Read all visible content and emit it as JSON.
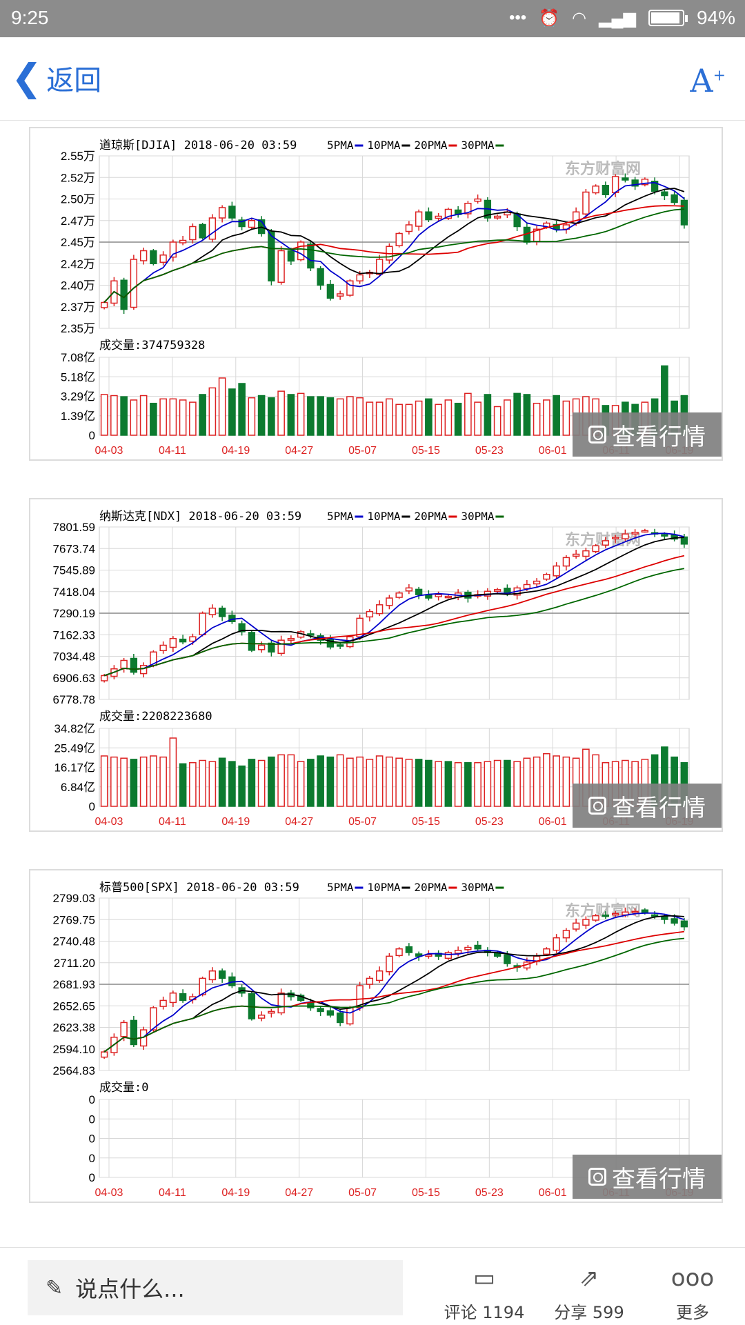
{
  "status": {
    "time": "9:25",
    "battery_percent": 94,
    "battery_text": "94%"
  },
  "nav": {
    "back_label": "返回",
    "font_icon": "A"
  },
  "view_button_label": "查看行情",
  "legend_items": [
    {
      "label": "5PMA",
      "color": "#0000cc"
    },
    {
      "label": "10PMA",
      "color": "#000000"
    },
    {
      "label": "20PMA",
      "color": "#dd0000"
    },
    {
      "label": "30PMA",
      "color": "#006600"
    }
  ],
  "colors": {
    "up": "#dd2222",
    "down": "#0c7a2f",
    "grid": "#d8d8d8",
    "axis_text": "#000000",
    "date_text": "#dd2222"
  },
  "watermark": "东方财富网",
  "bottom": {
    "comment_placeholder": "说点什么...",
    "comment_label": "评论 1194",
    "share_label": "分享 599",
    "more_label": "更多"
  },
  "chart_data": [
    {
      "type": "candlestick",
      "title": "道琼斯[DJIA] 2018-06-20 03:59",
      "price_ticks": [
        "2.55万",
        "2.52万",
        "2.50万",
        "2.47万",
        "2.45万",
        "2.42万",
        "2.40万",
        "2.37万",
        "2.35万"
      ],
      "price_range": [
        23500,
        25500
      ],
      "ma_reference": 24500,
      "volume_label": "成交量:374759328",
      "volume_ticks": [
        "7.08亿",
        "5.18亿",
        "3.29亿",
        "1.39亿",
        "0"
      ],
      "volume_max": 7.08,
      "dates": [
        "04-03",
        "04-11",
        "04-19",
        "04-27",
        "05-07",
        "05-15",
        "05-23",
        "06-01",
        "06-11",
        "06-19"
      ],
      "close": [
        23800,
        24050,
        23720,
        24300,
        24400,
        24250,
        24350,
        24500,
        24520,
        24680,
        24550,
        24780,
        24900,
        24780,
        24680,
        24750,
        24600,
        24050,
        24400,
        24280,
        24500,
        24200,
        24000,
        23850,
        23900,
        24050,
        24120,
        24150,
        24300,
        24450,
        24600,
        24700,
        24850,
        24760,
        24800,
        24880,
        24820,
        24950,
        25000,
        24780,
        24800,
        24850,
        24680,
        24500,
        24650,
        24720,
        24650,
        24700,
        24850,
        25080,
        25150,
        25050,
        25260,
        25220,
        25150,
        25230,
        25090,
        25040,
        24960,
        24700
      ],
      "volume": [
        3.7,
        3.6,
        3.5,
        3.2,
        3.6,
        2.9,
        3.3,
        3.3,
        3.2,
        3.0,
        3.7,
        4.3,
        5.2,
        4.2,
        4.7,
        3.4,
        3.6,
        3.4,
        4.0,
        3.7,
        3.8,
        3.5,
        3.5,
        3.4,
        3.3,
        3.5,
        3.4,
        3.0,
        3.0,
        3.3,
        2.8,
        2.8,
        3.1,
        3.3,
        2.8,
        3.2,
        2.9,
        3.8,
        3.0,
        3.7,
        2.6,
        3.2,
        3.8,
        3.7,
        2.9,
        3.2,
        3.6,
        3.1,
        3.3,
        3.5,
        3.3,
        2.7,
        2.7,
        3.0,
        2.8,
        3.0,
        3.3,
        6.3,
        3.1,
        3.6
      ]
    },
    {
      "type": "candlestick",
      "title": "纳斯达克[NDX] 2018-06-20 03:59",
      "price_ticks": [
        "7801.59",
        "7673.74",
        "7545.89",
        "7418.04",
        "7290.19",
        "7162.33",
        "7034.48",
        "6906.63",
        "6778.78"
      ],
      "price_range": [
        6778.78,
        7801.59
      ],
      "ma_reference": 7290.19,
      "volume_label": "成交量:2208223680",
      "volume_ticks": [
        "34.82亿",
        "25.49亿",
        "16.17亿",
        "6.84亿",
        "0"
      ],
      "volume_max": 34.82,
      "dates": [
        "04-03",
        "04-11",
        "04-19",
        "04-27",
        "05-07",
        "05-15",
        "05-23",
        "06-01",
        "06-11",
        "06-19"
      ],
      "close": [
        6920,
        6960,
        7010,
        6940,
        6980,
        7060,
        7100,
        7140,
        7120,
        7150,
        7290,
        7320,
        7270,
        7240,
        7180,
        7070,
        7100,
        7060,
        7130,
        7140,
        7180,
        7160,
        7130,
        7090,
        7100,
        7150,
        7260,
        7300,
        7340,
        7380,
        7410,
        7440,
        7400,
        7380,
        7400,
        7390,
        7410,
        7380,
        7400,
        7420,
        7430,
        7410,
        7440,
        7460,
        7480,
        7520,
        7570,
        7620,
        7640,
        7660,
        7690,
        7720,
        7740,
        7760,
        7770,
        7780,
        7760,
        7750,
        7730,
        7700
      ],
      "volume": [
        22.5,
        22.0,
        21.5,
        21.0,
        22.0,
        22.5,
        22.0,
        30.5,
        19.0,
        19.5,
        20.5,
        20.0,
        21.5,
        20.0,
        18.0,
        21.0,
        20.5,
        22.0,
        23.0,
        23.0,
        20.0,
        21.0,
        22.5,
        22.0,
        23.0,
        21.5,
        22.0,
        21.0,
        22.5,
        22.0,
        21.5,
        21.0,
        21.0,
        20.5,
        20.0,
        20.0,
        19.5,
        19.5,
        19.5,
        20.0,
        20.5,
        20.5,
        20.0,
        21.5,
        22.0,
        23.5,
        22.5,
        22.0,
        21.5,
        25.5,
        23.0,
        19.5,
        20.0,
        20.5,
        20.0,
        21.0,
        23.0,
        26.5,
        22.0,
        19.5
      ]
    },
    {
      "type": "candlestick",
      "title": "标普500[SPX] 2018-06-20 03:59",
      "price_ticks": [
        "2799.03",
        "2769.75",
        "2740.48",
        "2711.20",
        "2681.93",
        "2652.65",
        "2623.38",
        "2594.10",
        "2564.83"
      ],
      "price_range": [
        2564.83,
        2799.03
      ],
      "ma_reference": 2681.93,
      "volume_label": "成交量:0",
      "volume_ticks": [
        "0",
        "0",
        "0",
        "0",
        "0"
      ],
      "volume_max": 0,
      "dates": [
        "04-03",
        "04-11",
        "04-19",
        "04-27",
        "05-07",
        "05-15",
        "05-23",
        "06-01",
        "06-11",
        "06-19"
      ],
      "close": [
        2590,
        2610,
        2630,
        2600,
        2620,
        2650,
        2660,
        2670,
        2660,
        2665,
        2690,
        2700,
        2690,
        2680,
        2670,
        2635,
        2640,
        2645,
        2670,
        2665,
        2660,
        2650,
        2645,
        2640,
        2630,
        2650,
        2680,
        2690,
        2700,
        2720,
        2730,
        2725,
        2720,
        2722,
        2720,
        2725,
        2728,
        2732,
        2730,
        2725,
        2720,
        2710,
        2705,
        2712,
        2720,
        2730,
        2745,
        2755,
        2765,
        2770,
        2775,
        2775,
        2778,
        2780,
        2781,
        2779,
        2775,
        2770,
        2765,
        2760
      ],
      "volume": []
    }
  ]
}
